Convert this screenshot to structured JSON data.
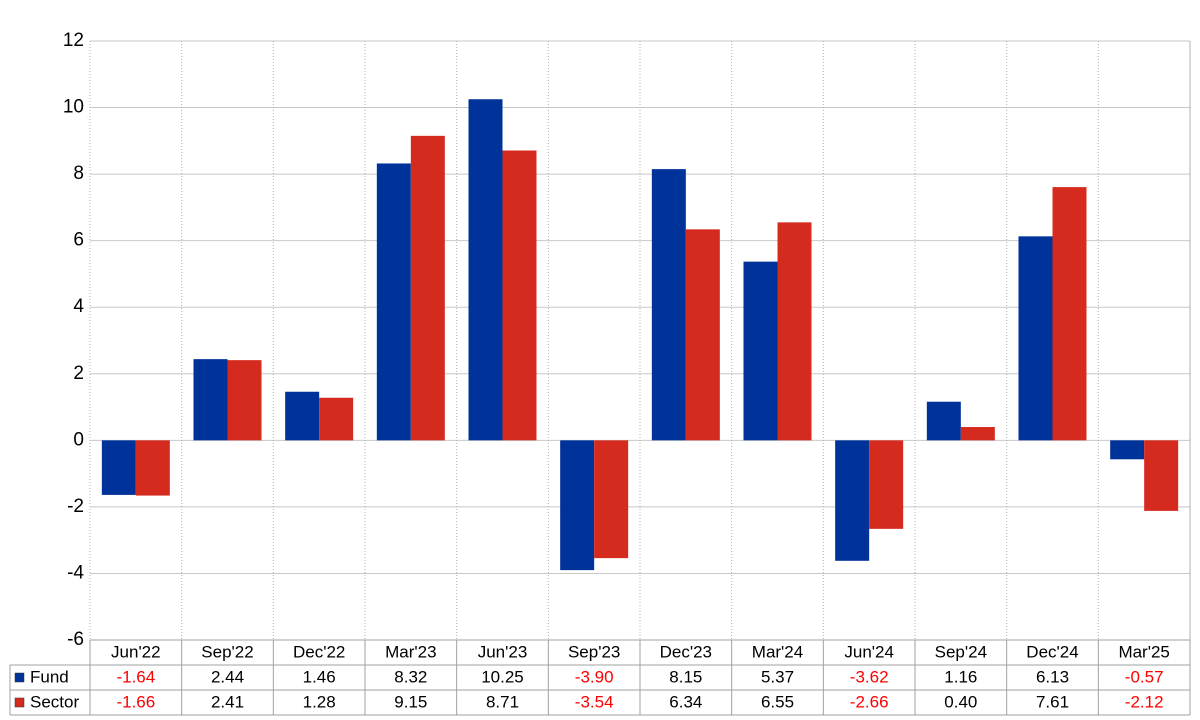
{
  "chart_data": {
    "type": "bar",
    "categories": [
      "Jun'22",
      "Sep'22",
      "Dec'22",
      "Mar'23",
      "Jun'23",
      "Sep'23",
      "Dec'23",
      "Mar'24",
      "Jun'24",
      "Sep'24",
      "Dec'24",
      "Mar'25"
    ],
    "series": [
      {
        "name": "Fund",
        "color": "#003399",
        "values": [
          -1.64,
          2.44,
          1.46,
          8.32,
          10.25,
          -3.9,
          8.15,
          5.37,
          -3.62,
          1.16,
          6.13,
          -0.57
        ],
        "value_labels": [
          "-1.64",
          "2.44",
          "1.46",
          "8.32",
          "10.25",
          "-3.90",
          "8.15",
          "5.37",
          "-3.62",
          "1.16",
          "6.13",
          "-0.57"
        ]
      },
      {
        "name": "Sector",
        "color": "#d52b1e",
        "values": [
          -1.66,
          2.41,
          1.28,
          9.15,
          8.71,
          -3.54,
          6.34,
          6.55,
          -2.66,
          0.4,
          7.61,
          -2.12
        ],
        "value_labels": [
          "-1.66",
          "2.41",
          "1.28",
          "9.15",
          "8.71",
          "-3.54",
          "6.34",
          "6.55",
          "-2.66",
          "0.40",
          "7.61",
          "-2.12"
        ]
      }
    ],
    "ylim": [
      -6,
      12
    ],
    "yticks": [
      -6,
      -4,
      -2,
      0,
      2,
      4,
      6,
      8,
      10,
      12
    ],
    "grid": true,
    "negative_label_color": "#ff0000"
  }
}
